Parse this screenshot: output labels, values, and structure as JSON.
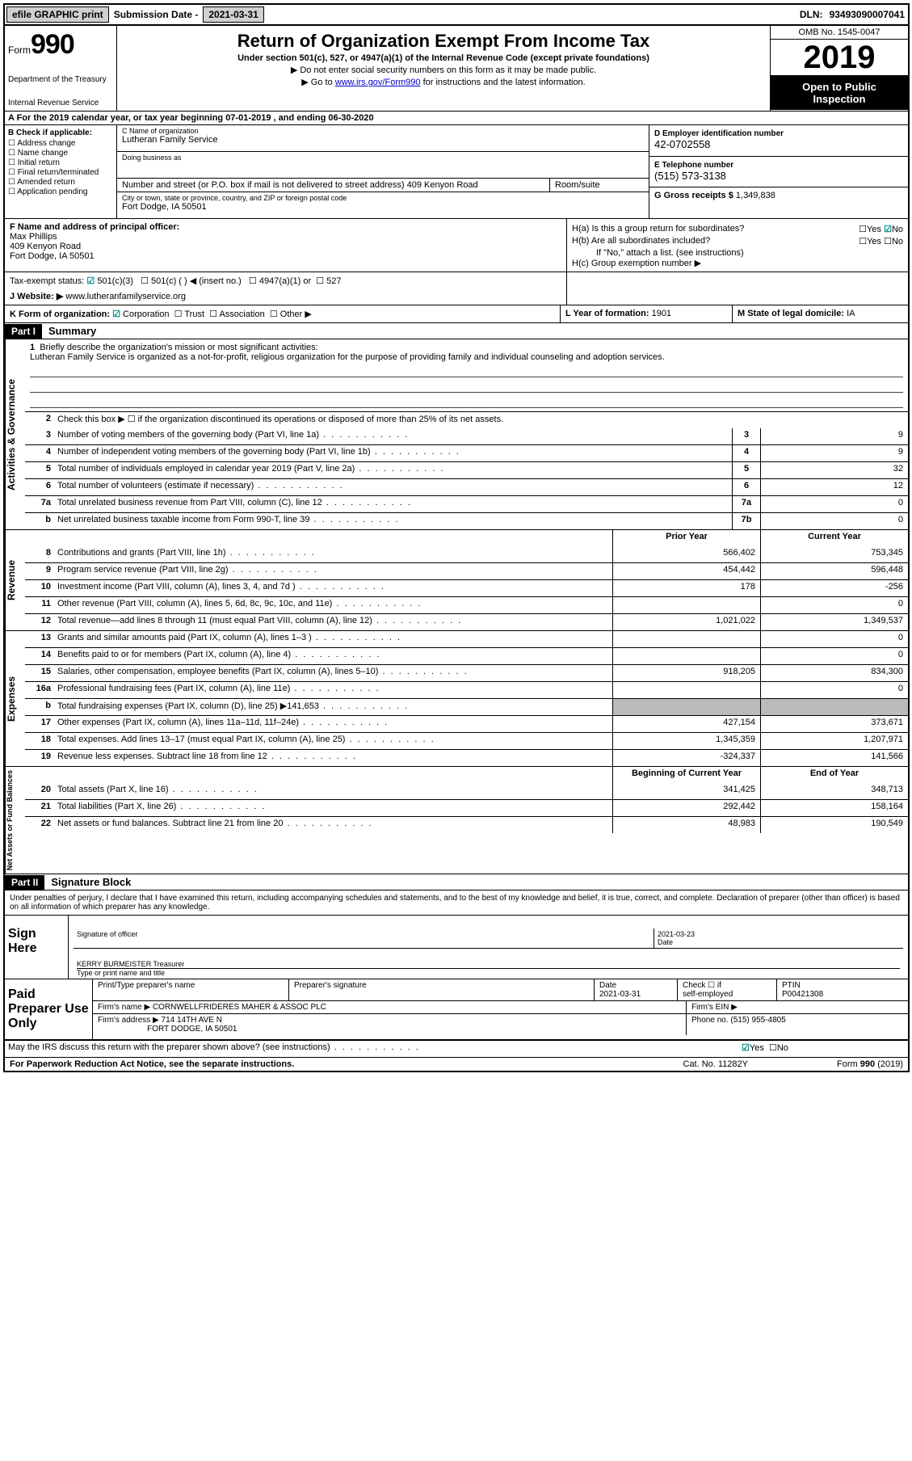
{
  "topbar": {
    "efile": "efile GRAPHIC print",
    "sub_label": "Submission Date -",
    "sub_date": "2021-03-31",
    "dln_label": "DLN:",
    "dln": "93493090007041"
  },
  "header": {
    "form_word": "Form",
    "form_num": "990",
    "dept1": "Department of the Treasury",
    "dept2": "Internal Revenue Service",
    "title": "Return of Organization Exempt From Income Tax",
    "subtitle": "Under section 501(c), 527, or 4947(a)(1) of the Internal Revenue Code (except private foundations)",
    "note1": "▶ Do not enter social security numbers on this form as it may be made public.",
    "note2_pre": "▶ Go to ",
    "note2_link": "www.irs.gov/Form990",
    "note2_post": " for instructions and the latest information.",
    "omb": "OMB No. 1545-0047",
    "year": "2019",
    "open1": "Open to Public",
    "open2": "Inspection"
  },
  "row_a": "A For the 2019 calendar year, or tax year beginning 07-01-2019   , and ending 06-30-2020",
  "b": {
    "hdr": "B Check if applicable:",
    "o1": "Address change",
    "o2": "Name change",
    "o3": "Initial return",
    "o4": "Final return/terminated",
    "o5": "Amended return",
    "o6": "Application pending"
  },
  "c": {
    "name_lbl": "C Name of organization",
    "name": "Lutheran Family Service",
    "dba_lbl": "Doing business as",
    "addr_lbl": "Number and street (or P.O. box if mail is not delivered to street address)",
    "room_lbl": "Room/suite",
    "addr": "409 Kenyon Road",
    "city_lbl": "City or town, state or province, country, and ZIP or foreign postal code",
    "city": "Fort Dodge, IA  50501"
  },
  "d": {
    "ein_lbl": "D Employer identification number",
    "ein": "42-0702558",
    "phone_lbl": "E Telephone number",
    "phone": "(515) 573-3138",
    "gross_lbl": "G Gross receipts $",
    "gross": "1,349,838"
  },
  "f": {
    "lbl": "F  Name and address of principal officer:",
    "name": "Max Phillips",
    "addr1": "409 Kenyon Road",
    "addr2": "Fort Dodge, IA  50501"
  },
  "h": {
    "a": "H(a)  Is this a group return for subordinates?",
    "b": "H(b)  Are all subordinates included?",
    "b2": "If \"No,\" attach a list. (see instructions)",
    "c": "H(c)  Group exemption number ▶",
    "yes": "Yes",
    "no": "No"
  },
  "tax": {
    "lbl": "Tax-exempt status:",
    "o1": "501(c)(3)",
    "o2": "501(c) (  ) ◀ (insert no.)",
    "o3": "4947(a)(1) or",
    "o4": "527"
  },
  "j": {
    "lbl": "J Website: ▶",
    "val": "www.lutheranfamilyservice.org"
  },
  "k": {
    "lbl": "K Form of organization:",
    "o1": "Corporation",
    "o2": "Trust",
    "o3": "Association",
    "o4": "Other ▶",
    "l_lbl": "L Year of formation:",
    "l_val": "1901",
    "m_lbl": "M State of legal domicile:",
    "m_val": "IA"
  },
  "parts": {
    "p1": "Part I",
    "p1_title": "Summary",
    "p2": "Part II",
    "p2_title": "Signature Block"
  },
  "vtabs": {
    "gov": "Activities & Governance",
    "rev": "Revenue",
    "exp": "Expenses",
    "net": "Net Assets or Fund Balances"
  },
  "mission": {
    "num": "1",
    "lbl": "Briefly describe the organization's mission or most significant activities:",
    "text": "Lutheran Family Service is organized as a not-for-profit, religious organization for the purpose of providing family and individual counseling and adoption services."
  },
  "line2": {
    "num": "2",
    "text": "Check this box ▶ ☐  if the organization discontinued its operations or disposed of more than 25% of its net assets."
  },
  "gov_lines": [
    {
      "n": "3",
      "d": "Number of voting members of the governing body (Part VI, line 1a)",
      "box": "3",
      "v": "9"
    },
    {
      "n": "4",
      "d": "Number of independent voting members of the governing body (Part VI, line 1b)",
      "box": "4",
      "v": "9"
    },
    {
      "n": "5",
      "d": "Total number of individuals employed in calendar year 2019 (Part V, line 2a)",
      "box": "5",
      "v": "32"
    },
    {
      "n": "6",
      "d": "Total number of volunteers (estimate if necessary)",
      "box": "6",
      "v": "12"
    },
    {
      "n": "7a",
      "d": "Total unrelated business revenue from Part VIII, column (C), line 12",
      "box": "7a",
      "v": "0"
    },
    {
      "n": "b",
      "d": "Net unrelated business taxable income from Form 990-T, line 39",
      "box": "7b",
      "v": "0"
    }
  ],
  "col_hdr": {
    "prior": "Prior Year",
    "curr": "Current Year"
  },
  "rev_lines": [
    {
      "n": "8",
      "d": "Contributions and grants (Part VIII, line 1h)",
      "p": "566,402",
      "c": "753,345"
    },
    {
      "n": "9",
      "d": "Program service revenue (Part VIII, line 2g)",
      "p": "454,442",
      "c": "596,448"
    },
    {
      "n": "10",
      "d": "Investment income (Part VIII, column (A), lines 3, 4, and 7d )",
      "p": "178",
      "c": "-256"
    },
    {
      "n": "11",
      "d": "Other revenue (Part VIII, column (A), lines 5, 6d, 8c, 9c, 10c, and 11e)",
      "p": "",
      "c": "0"
    },
    {
      "n": "12",
      "d": "Total revenue—add lines 8 through 11 (must equal Part VIII, column (A), line 12)",
      "p": "1,021,022",
      "c": "1,349,537"
    }
  ],
  "exp_lines": [
    {
      "n": "13",
      "d": "Grants and similar amounts paid (Part IX, column (A), lines 1–3 )",
      "p": "",
      "c": "0"
    },
    {
      "n": "14",
      "d": "Benefits paid to or for members (Part IX, column (A), line 4)",
      "p": "",
      "c": "0"
    },
    {
      "n": "15",
      "d": "Salaries, other compensation, employee benefits (Part IX, column (A), lines 5–10)",
      "p": "918,205",
      "c": "834,300"
    },
    {
      "n": "16a",
      "d": "Professional fundraising fees (Part IX, column (A), line 11e)",
      "p": "",
      "c": "0"
    },
    {
      "n": "b",
      "d": "Total fundraising expenses (Part IX, column (D), line 25) ▶141,653",
      "shadep": true,
      "shadec": true
    },
    {
      "n": "17",
      "d": "Other expenses (Part IX, column (A), lines 11a–11d, 11f–24e)",
      "p": "427,154",
      "c": "373,671"
    },
    {
      "n": "18",
      "d": "Total expenses. Add lines 13–17 (must equal Part IX, column (A), line 25)",
      "p": "1,345,359",
      "c": "1,207,971"
    },
    {
      "n": "19",
      "d": "Revenue less expenses. Subtract line 18 from line 12",
      "p": "-324,337",
      "c": "141,566"
    }
  ],
  "net_hdr": {
    "beg": "Beginning of Current Year",
    "end": "End of Year"
  },
  "net_lines": [
    {
      "n": "20",
      "d": "Total assets (Part X, line 16)",
      "p": "341,425",
      "c": "348,713"
    },
    {
      "n": "21",
      "d": "Total liabilities (Part X, line 26)",
      "p": "292,442",
      "c": "158,164"
    },
    {
      "n": "22",
      "d": "Net assets or fund balances. Subtract line 21 from line 20",
      "p": "48,983",
      "c": "190,549"
    }
  ],
  "sig": {
    "decl": "Under penalties of perjury, I declare that I have examined this return, including accompanying schedules and statements, and to the best of my knowledge and belief, it is true, correct, and complete. Declaration of preparer (other than officer) is based on all information of which preparer has any knowledge.",
    "sign_here": "Sign Here",
    "sig_officer": "Signature of officer",
    "date": "Date",
    "date_val": "2021-03-23",
    "name_val": "KERRY BURMEISTER  Treasurer",
    "type_name": "Type or print name and title"
  },
  "paid": {
    "label": "Paid Preparer Use Only",
    "h1": "Print/Type preparer's name",
    "h2": "Preparer's signature",
    "h3": "Date",
    "h3v": "2021-03-31",
    "h4a": "Check ☐ if",
    "h4b": "self-employed",
    "h5": "PTIN",
    "h5v": "P00421308",
    "firm_name_lbl": "Firm's name     ▶",
    "firm_name": "CORNWELLFRIDERES MAHER & ASSOC PLC",
    "firm_ein_lbl": "Firm's EIN ▶",
    "firm_addr_lbl": "Firm's address ▶",
    "firm_addr1": "714 14TH AVE N",
    "firm_addr2": "FORT DODGE, IA  50501",
    "phone_lbl": "Phone no.",
    "phone": "(515) 955-4805"
  },
  "discuss": {
    "text": "May the IRS discuss this return with the preparer shown above? (see instructions)",
    "yes": "Yes",
    "no": "No"
  },
  "footer": {
    "left": "For Paperwork Reduction Act Notice, see the separate instructions.",
    "mid": "Cat. No. 11282Y",
    "right": "Form 990 (2019)"
  },
  "style": {
    "colors": {
      "black": "#000000",
      "grey_btn": "#d0d0d0",
      "shade": "#bbbbbb",
      "link": "#0000cc",
      "check": "#008888"
    }
  }
}
